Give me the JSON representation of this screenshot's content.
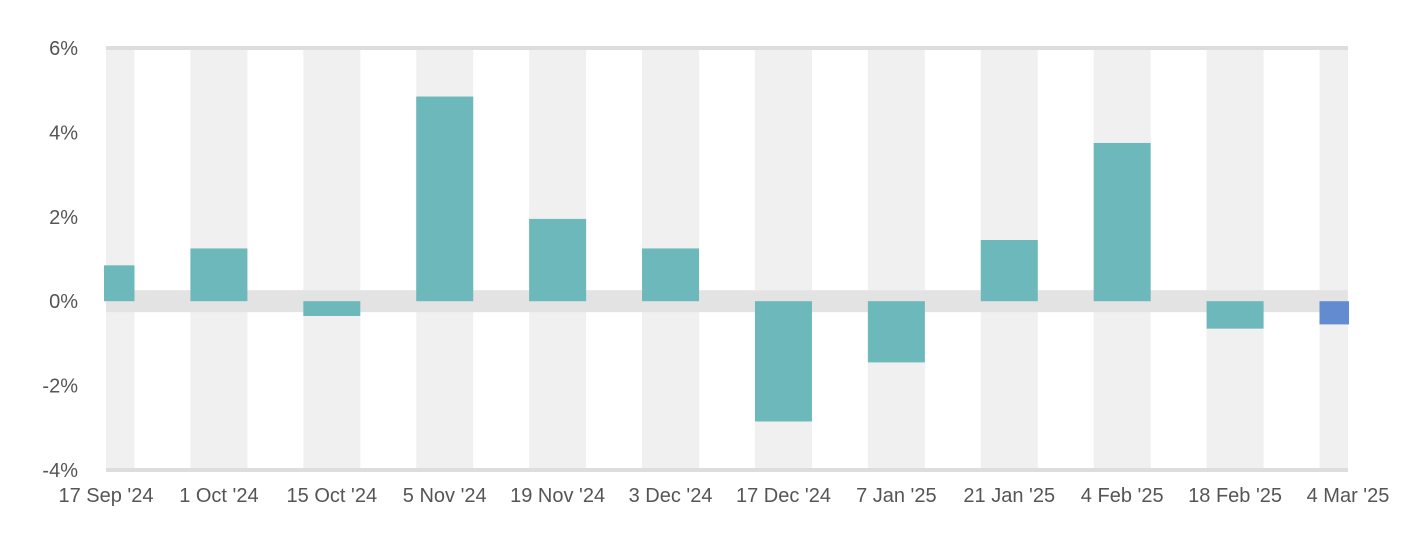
{
  "chart_data": {
    "type": "bar",
    "title": "",
    "xlabel": "",
    "ylabel": "",
    "categories": [
      "17 Sep '24",
      "1 Oct '24",
      "15 Oct '24",
      "5 Nov '24",
      "19 Nov '24",
      "3 Dec '24",
      "17 Dec '24",
      "7 Jan '25",
      "21 Jan '25",
      "4 Feb '25",
      "18 Feb '25",
      "4 Mar '25"
    ],
    "values": [
      0.85,
      1.25,
      -0.35,
      4.85,
      1.95,
      1.25,
      -2.85,
      -1.45,
      1.45,
      3.75,
      -0.65,
      -0.55
    ],
    "ylim": [
      -4,
      6
    ],
    "yticks": [
      -4,
      -2,
      0,
      2,
      4,
      6
    ],
    "ytick_labels": [
      "-4%",
      "-2%",
      "0%",
      "2%",
      "4%",
      "6%"
    ],
    "grid": "alternating column bands",
    "legend": "none",
    "colors": {
      "bar": "#6cb8ba",
      "bar_highlight": "#628ccf",
      "band": "#f0f0f0",
      "zero_band": "#e3e3e3",
      "axis": "#dddddd"
    },
    "highlight_index": 11
  }
}
